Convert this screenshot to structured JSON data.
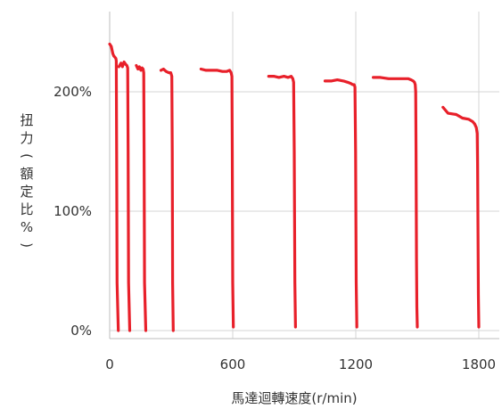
{
  "chart_data": {
    "type": "line",
    "xlabel": "馬達迴轉速度(r/min)",
    "ylabel": "扭力(額定比%)",
    "xlim": [
      0,
      1850
    ],
    "ylim": [
      -5,
      262
    ],
    "xticks": [
      0,
      600,
      1200,
      1800
    ],
    "yticks": [
      0,
      100,
      200
    ],
    "ytick_labels": [
      "0%",
      "100%",
      "200%"
    ],
    "grid": "vertical lines at x ticks, horizontal lines at y ticks",
    "color": "#e8202a",
    "series": [
      {
        "x": [
          0,
          8,
          15,
          20,
          25,
          30,
          32,
          34,
          36,
          42
        ],
        "y": [
          240,
          238,
          232,
          230,
          229,
          228,
          226,
          150,
          40,
          0
        ]
      },
      {
        "x": [
          45,
          55,
          62,
          70,
          78,
          84,
          88,
          90,
          92,
          98
        ],
        "y": [
          221,
          224,
          221,
          225,
          223,
          222,
          220,
          150,
          40,
          0
        ]
      },
      {
        "x": [
          130,
          138,
          145,
          152,
          158,
          163,
          166,
          168,
          170,
          176
        ],
        "y": [
          222,
          219,
          221,
          218,
          220,
          219,
          216,
          150,
          40,
          0
        ]
      },
      {
        "x": [
          250,
          262,
          275,
          288,
          298,
          303,
          305,
          307,
          310
        ],
        "y": [
          218,
          219,
          217,
          216,
          216,
          213,
          150,
          40,
          0
        ]
      },
      {
        "x": [
          445,
          470,
          500,
          525,
          550,
          570,
          585,
          592,
          596,
          598,
          600,
          603
        ],
        "y": [
          219,
          218,
          218,
          218,
          217,
          217,
          218,
          216,
          213,
          150,
          40,
          3
        ]
      },
      {
        "x": [
          775,
          800,
          825,
          850,
          870,
          885,
          893,
          897,
          900,
          903,
          906
        ],
        "y": [
          213,
          213,
          212,
          213,
          212,
          213,
          211,
          208,
          150,
          40,
          3
        ]
      },
      {
        "x": [
          1050,
          1080,
          1110,
          1140,
          1160,
          1175,
          1185,
          1192,
          1196,
          1199,
          1202,
          1205
        ],
        "y": [
          209,
          209,
          210,
          209,
          208,
          207,
          206,
          206,
          204,
          150,
          40,
          3
        ]
      },
      {
        "x": [
          1285,
          1320,
          1360,
          1400,
          1430,
          1455,
          1470,
          1480,
          1486,
          1490,
          1492,
          1494,
          1496,
          1498,
          1500
        ],
        "y": [
          212,
          212,
          211,
          211,
          211,
          211,
          210,
          209,
          208,
          206,
          200,
          150,
          60,
          20,
          3
        ]
      },
      {
        "x": [
          1625,
          1650,
          1690,
          1720,
          1750,
          1770,
          1780,
          1788,
          1792,
          1794,
          1796,
          1798,
          1800
        ],
        "y": [
          187,
          182,
          181,
          178,
          177,
          175,
          173,
          170,
          165,
          140,
          80,
          30,
          3
        ]
      }
    ]
  }
}
